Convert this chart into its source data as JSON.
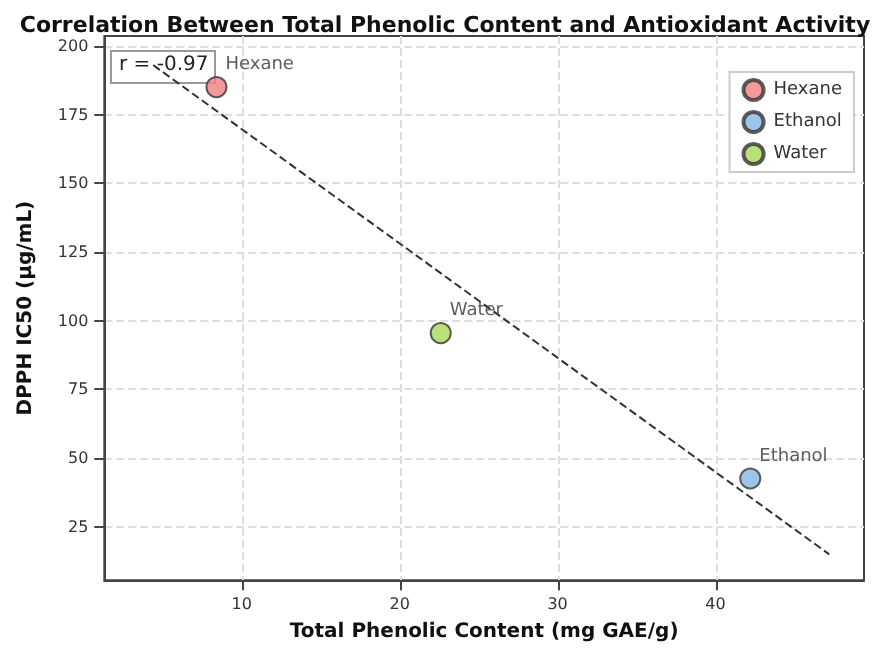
{
  "chart_data": {
    "type": "scatter",
    "title": "Correlation Between Total Phenolic Content and Antioxidant Activity",
    "xlabel": "Total Phenolic Content (mg GAE/g)",
    "ylabel": "DPPH IC50 (µg/mL)",
    "annotations": [
      "r = -0.97"
    ],
    "series": [
      {
        "name": "Hexane",
        "color": "#f08080",
        "x": [
          8.4
        ],
        "values": [
          185
        ]
      },
      {
        "name": "Ethanol",
        "color": "#87b6e0",
        "x": [
          42.2
        ],
        "values": [
          42.6
        ]
      },
      {
        "name": "Water",
        "color": "#a8d858",
        "x": [
          22.6
        ],
        "values": [
          95.5
        ]
      },
      {
        "type": "line",
        "color": "#333333",
        "line_style": "dashed",
        "marker": "none",
        "x": [
          4.4,
          47.2
        ],
        "values": [
          193,
          15
        ]
      }
    ],
    "xlim": [
      1.3,
      49.4
    ],
    "xticks": [
      10,
      20,
      30,
      40
    ],
    "ylim": [
      5.6,
      203.6
    ],
    "yticks": [
      25,
      50,
      75,
      100,
      125,
      150,
      175,
      200
    ],
    "grid": true,
    "legend": "top right",
    "marker": "circle"
  }
}
